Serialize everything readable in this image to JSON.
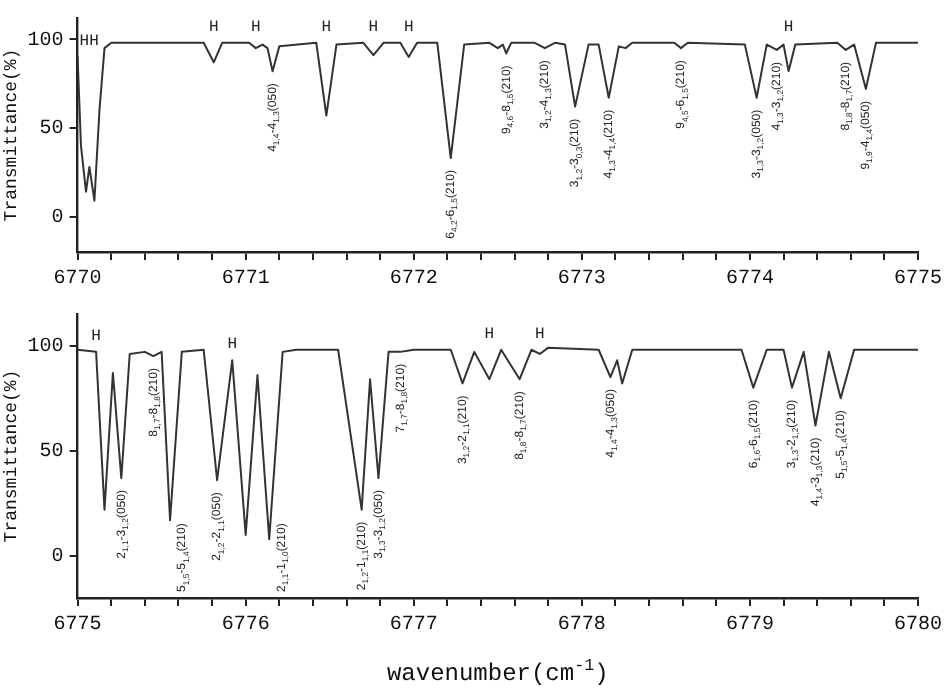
{
  "chart_data": [
    {
      "type": "line",
      "ylabel": "Transmittance(%)",
      "xlim": [
        6770,
        6775
      ],
      "ylim": [
        -20,
        112
      ],
      "xticks": [
        6770,
        {
          "value": 6770.2,
          "label": null
        },
        {
          "value": 6770.4,
          "label": null
        },
        {
          "value": 6770.6,
          "label": null
        },
        {
          "value": 6770.8,
          "label": null
        },
        6771,
        {
          "value": 6771.2,
          "label": null
        },
        {
          "value": 6771.4,
          "label": null
        },
        {
          "value": 6771.6,
          "label": null
        },
        {
          "value": 6771.8,
          "label": null
        },
        6772,
        {
          "value": 6772.2,
          "label": null
        },
        {
          "value": 6772.4,
          "label": null
        },
        {
          "value": 6772.6,
          "label": null
        },
        {
          "value": 6772.8,
          "label": null
        },
        6773,
        {
          "value": 6773.2,
          "label": null
        },
        {
          "value": 6773.4,
          "label": null
        },
        {
          "value": 6773.6,
          "label": null
        },
        {
          "value": 6773.8,
          "label": null
        },
        6774,
        {
          "value": 6774.2,
          "label": null
        },
        {
          "value": 6774.4,
          "label": null
        },
        {
          "value": 6774.6,
          "label": null
        },
        {
          "value": 6774.8,
          "label": null
        },
        6775
      ],
      "yticks": [
        0,
        50,
        100
      ],
      "grid": false,
      "legend": false,
      "marker": "none",
      "line_style": "solid",
      "series": [
        {
          "color": "#333333",
          "x": [
            6770.0,
            6770.02,
            6770.05,
            6770.07,
            6770.1,
            6770.13,
            6770.16,
            6770.2,
            6770.75,
            6770.81,
            6770.86,
            6771.02,
            6771.06,
            6771.1,
            6771.13,
            6771.16,
            6771.2,
            6771.42,
            6771.48,
            6771.54,
            6771.7,
            6771.76,
            6771.82,
            6771.92,
            6771.97,
            6772.02,
            6772.14,
            6772.22,
            6772.3,
            6772.45,
            6772.5,
            6772.53,
            6772.55,
            6772.58,
            6772.72,
            6772.78,
            6772.84,
            6772.9,
            6772.96,
            6773.04,
            6773.1,
            6773.16,
            6773.22,
            6773.26,
            6773.3,
            6773.55,
            6773.59,
            6773.63,
            6773.97,
            6774.04,
            6774.1,
            6774.16,
            6774.2,
            6774.23,
            6774.27,
            6774.52,
            6774.57,
            6774.62,
            6774.69,
            6774.75,
            6775.0
          ],
          "values": [
            90,
            40,
            14,
            28,
            9,
            60,
            95,
            98,
            98,
            87,
            98,
            98,
            95,
            97,
            95,
            82,
            96,
            98,
            57,
            97,
            98,
            91,
            98,
            98,
            90,
            98,
            98,
            33,
            97,
            98,
            95,
            97,
            92,
            98,
            98,
            95,
            98,
            97,
            62,
            97,
            97,
            67,
            96,
            95,
            98,
            98,
            95,
            98,
            97,
            67,
            97,
            94,
            97,
            82,
            97,
            98,
            94,
            97,
            72,
            98,
            98
          ]
        }
      ],
      "annotations": [
        {
          "text": "HH",
          "x": 6770.0,
          "y": 90
        },
        {
          "text": "H",
          "x": 6770.81,
          "y": 98
        },
        {
          "text": "H",
          "x": 6771.06,
          "y": 98
        },
        {
          "text": "H",
          "x": 6771.48,
          "y": 98
        },
        {
          "text": "H",
          "x": 6771.76,
          "y": 98
        },
        {
          "text": "H",
          "x": 6771.97,
          "y": 98
        },
        {
          "text": "H",
          "x": 6774.23,
          "y": 98
        },
        {
          "text": "4$_{1,4}$-4$_{1,3}$(050)",
          "x": 6771.16,
          "y": 82
        },
        {
          "text": "6$_{4,2}$-6$_{1,5}$(210)",
          "x": 6772.22,
          "y": 33
        },
        {
          "text": "9$_{4,6}$-8$_{1,5}$(210)",
          "x": 6772.55,
          "y": 92
        },
        {
          "text": "3$_{1,2}$-4$_{1,3}$(210)",
          "x": 6772.78,
          "y": 95
        },
        {
          "text": "3$_{1,2}$-3$_{0,3}$(210)",
          "x": 6772.96,
          "y": 62
        },
        {
          "text": "4$_{1,3}$-4$_{1,4}$(210)",
          "x": 6773.16,
          "y": 67
        },
        {
          "text": "9$_{4,5}$-6$_{1,5}$(210)",
          "x": 6773.59,
          "y": 95
        },
        {
          "text": "3$_{1,3}$-3$_{1,2}$(050)",
          "x": 6774.04,
          "y": 67
        },
        {
          "text": "4$_{1,3}$-3$_{1,2}$(210)",
          "x": 6774.16,
          "y": 94
        },
        {
          "text": "8$_{1,8}$-8$_{1,7}$(210)",
          "x": 6774.57,
          "y": 94
        },
        {
          "text": "9$_{1,9}$-4$_{1,4}$(050)",
          "x": 6774.69,
          "y": 72
        }
      ]
    },
    {
      "type": "line",
      "xlabel": "wavenumber(cm$^{-1}$)",
      "ylabel": "Transmittance(%)",
      "xlim": [
        6775,
        6780
      ],
      "ylim": [
        -20,
        115
      ],
      "xticks": [
        6775,
        {
          "value": 6775.2,
          "label": null
        },
        {
          "value": 6775.4,
          "label": null
        },
        {
          "value": 6775.6,
          "label": null
        },
        {
          "value": 6775.8,
          "label": null
        },
        6776,
        {
          "value": 6776.2,
          "label": null
        },
        {
          "value": 6776.4,
          "label": null
        },
        {
          "value": 6776.6,
          "label": null
        },
        {
          "value": 6776.8,
          "label": null
        },
        6777,
        {
          "value": 6777.2,
          "label": null
        },
        {
          "value": 6777.4,
          "label": null
        },
        {
          "value": 6777.6,
          "label": null
        },
        {
          "value": 6777.8,
          "label": null
        },
        6778,
        {
          "value": 6778.2,
          "label": null
        },
        {
          "value": 6778.4,
          "label": null
        },
        {
          "value": 6778.6,
          "label": null
        },
        {
          "value": 6778.8,
          "label": null
        },
        6779,
        {
          "value": 6779.2,
          "label": null
        },
        {
          "value": 6779.4,
          "label": null
        },
        {
          "value": 6779.6,
          "label": null
        },
        {
          "value": 6779.8,
          "label": null
        },
        6780
      ],
      "yticks": [
        0,
        50,
        100
      ],
      "grid": false,
      "legend": false,
      "marker": "none",
      "line_style": "solid",
      "series": [
        {
          "color": "#333333",
          "x": [
            6775.0,
            6775.11,
            6775.16,
            6775.21,
            6775.26,
            6775.31,
            6775.4,
            6775.45,
            6775.5,
            6775.55,
            6775.62,
            6775.75,
            6775.83,
            6775.92,
            6776.0,
            6776.07,
            6776.14,
            6776.22,
            6776.3,
            6776.55,
            6776.69,
            6776.74,
            6776.79,
            6776.85,
            6776.92,
            6777.0,
            6777.22,
            6777.29,
            6777.36,
            6777.45,
            6777.52,
            6777.63,
            6777.7,
            6777.75,
            6777.8,
            6778.1,
            6778.17,
            6778.21,
            6778.24,
            6778.3,
            6778.95,
            6779.02,
            6779.1,
            6779.2,
            6779.25,
            6779.32,
            6779.39,
            6779.47,
            6779.54,
            6779.62,
            6780.0
          ],
          "values": [
            98,
            97,
            22,
            87,
            37,
            96,
            97,
            95,
            97,
            17,
            97,
            98,
            36,
            93,
            10,
            86,
            8,
            97,
            98,
            98,
            22,
            84,
            37,
            97,
            97,
            98,
            98,
            82,
            97,
            84,
            98,
            84,
            98,
            96,
            99,
            98,
            85,
            93,
            82,
            98,
            98,
            80,
            98,
            98,
            80,
            97,
            62,
            97,
            75,
            98,
            98
          ]
        }
      ],
      "annotations": [
        {
          "text": "H",
          "x": 6775.11,
          "y": 97
        },
        {
          "text": "H",
          "x": 6775.92,
          "y": 93
        },
        {
          "text": "H",
          "x": 6777.45,
          "y": 98
        },
        {
          "text": "H",
          "x": 6777.75,
          "y": 98
        },
        {
          "text": "2$_{1,1}$-3$_{1,2}$(050)",
          "x": 6775.26,
          "y": 37
        },
        {
          "text": "8$_{1,7}$-8$_{1,8}$(210)",
          "x": 6775.45,
          "y": 95
        },
        {
          "text": "5$_{1,5}$-5$_{1,4}$(210)",
          "x": 6775.55,
          "y": 17
        },
        {
          "text": "2$_{1,2}$-2$_{1,1}$(050)",
          "x": 6775.83,
          "y": 36
        },
        {
          "text": "2$_{1,1}$-1$_{1,0}$(210)",
          "x": 6776.14,
          "y": 8
        },
        {
          "text": "2$_{1,2}$-1$_{1,1}$(210)",
          "x": 6776.69,
          "y": 22
        },
        {
          "text": "3$_{1,3}$-3$_{1,2}$(050)",
          "x": 6776.79,
          "y": 37
        },
        {
          "text": "7$_{1,7}$-8$_{1,8}$(210)",
          "x": 6776.92,
          "y": 97
        },
        {
          "text": "3$_{1,2}$-2$_{1,1}$(210)",
          "x": 6777.29,
          "y": 82
        },
        {
          "text": "8$_{1,8}$-8$_{1,7}$(210)",
          "x": 6777.63,
          "y": 84
        },
        {
          "text": "4$_{1,4}$-4$_{1,3}$(050)",
          "x": 6778.17,
          "y": 85
        },
        {
          "text": "6$_{1,6}$-6$_{1,5}$(210)",
          "x": 6779.02,
          "y": 80
        },
        {
          "text": "3$_{1,3}$-2$_{1,2}$(210)",
          "x": 6779.25,
          "y": 80
        },
        {
          "text": "4$_{1,4}$-3$_{1,3}$(210)",
          "x": 6779.39,
          "y": 62
        },
        {
          "text": "5$_{1,5}$-5$_{1,4}$(210)",
          "x": 6779.54,
          "y": 75
        }
      ]
    }
  ]
}
